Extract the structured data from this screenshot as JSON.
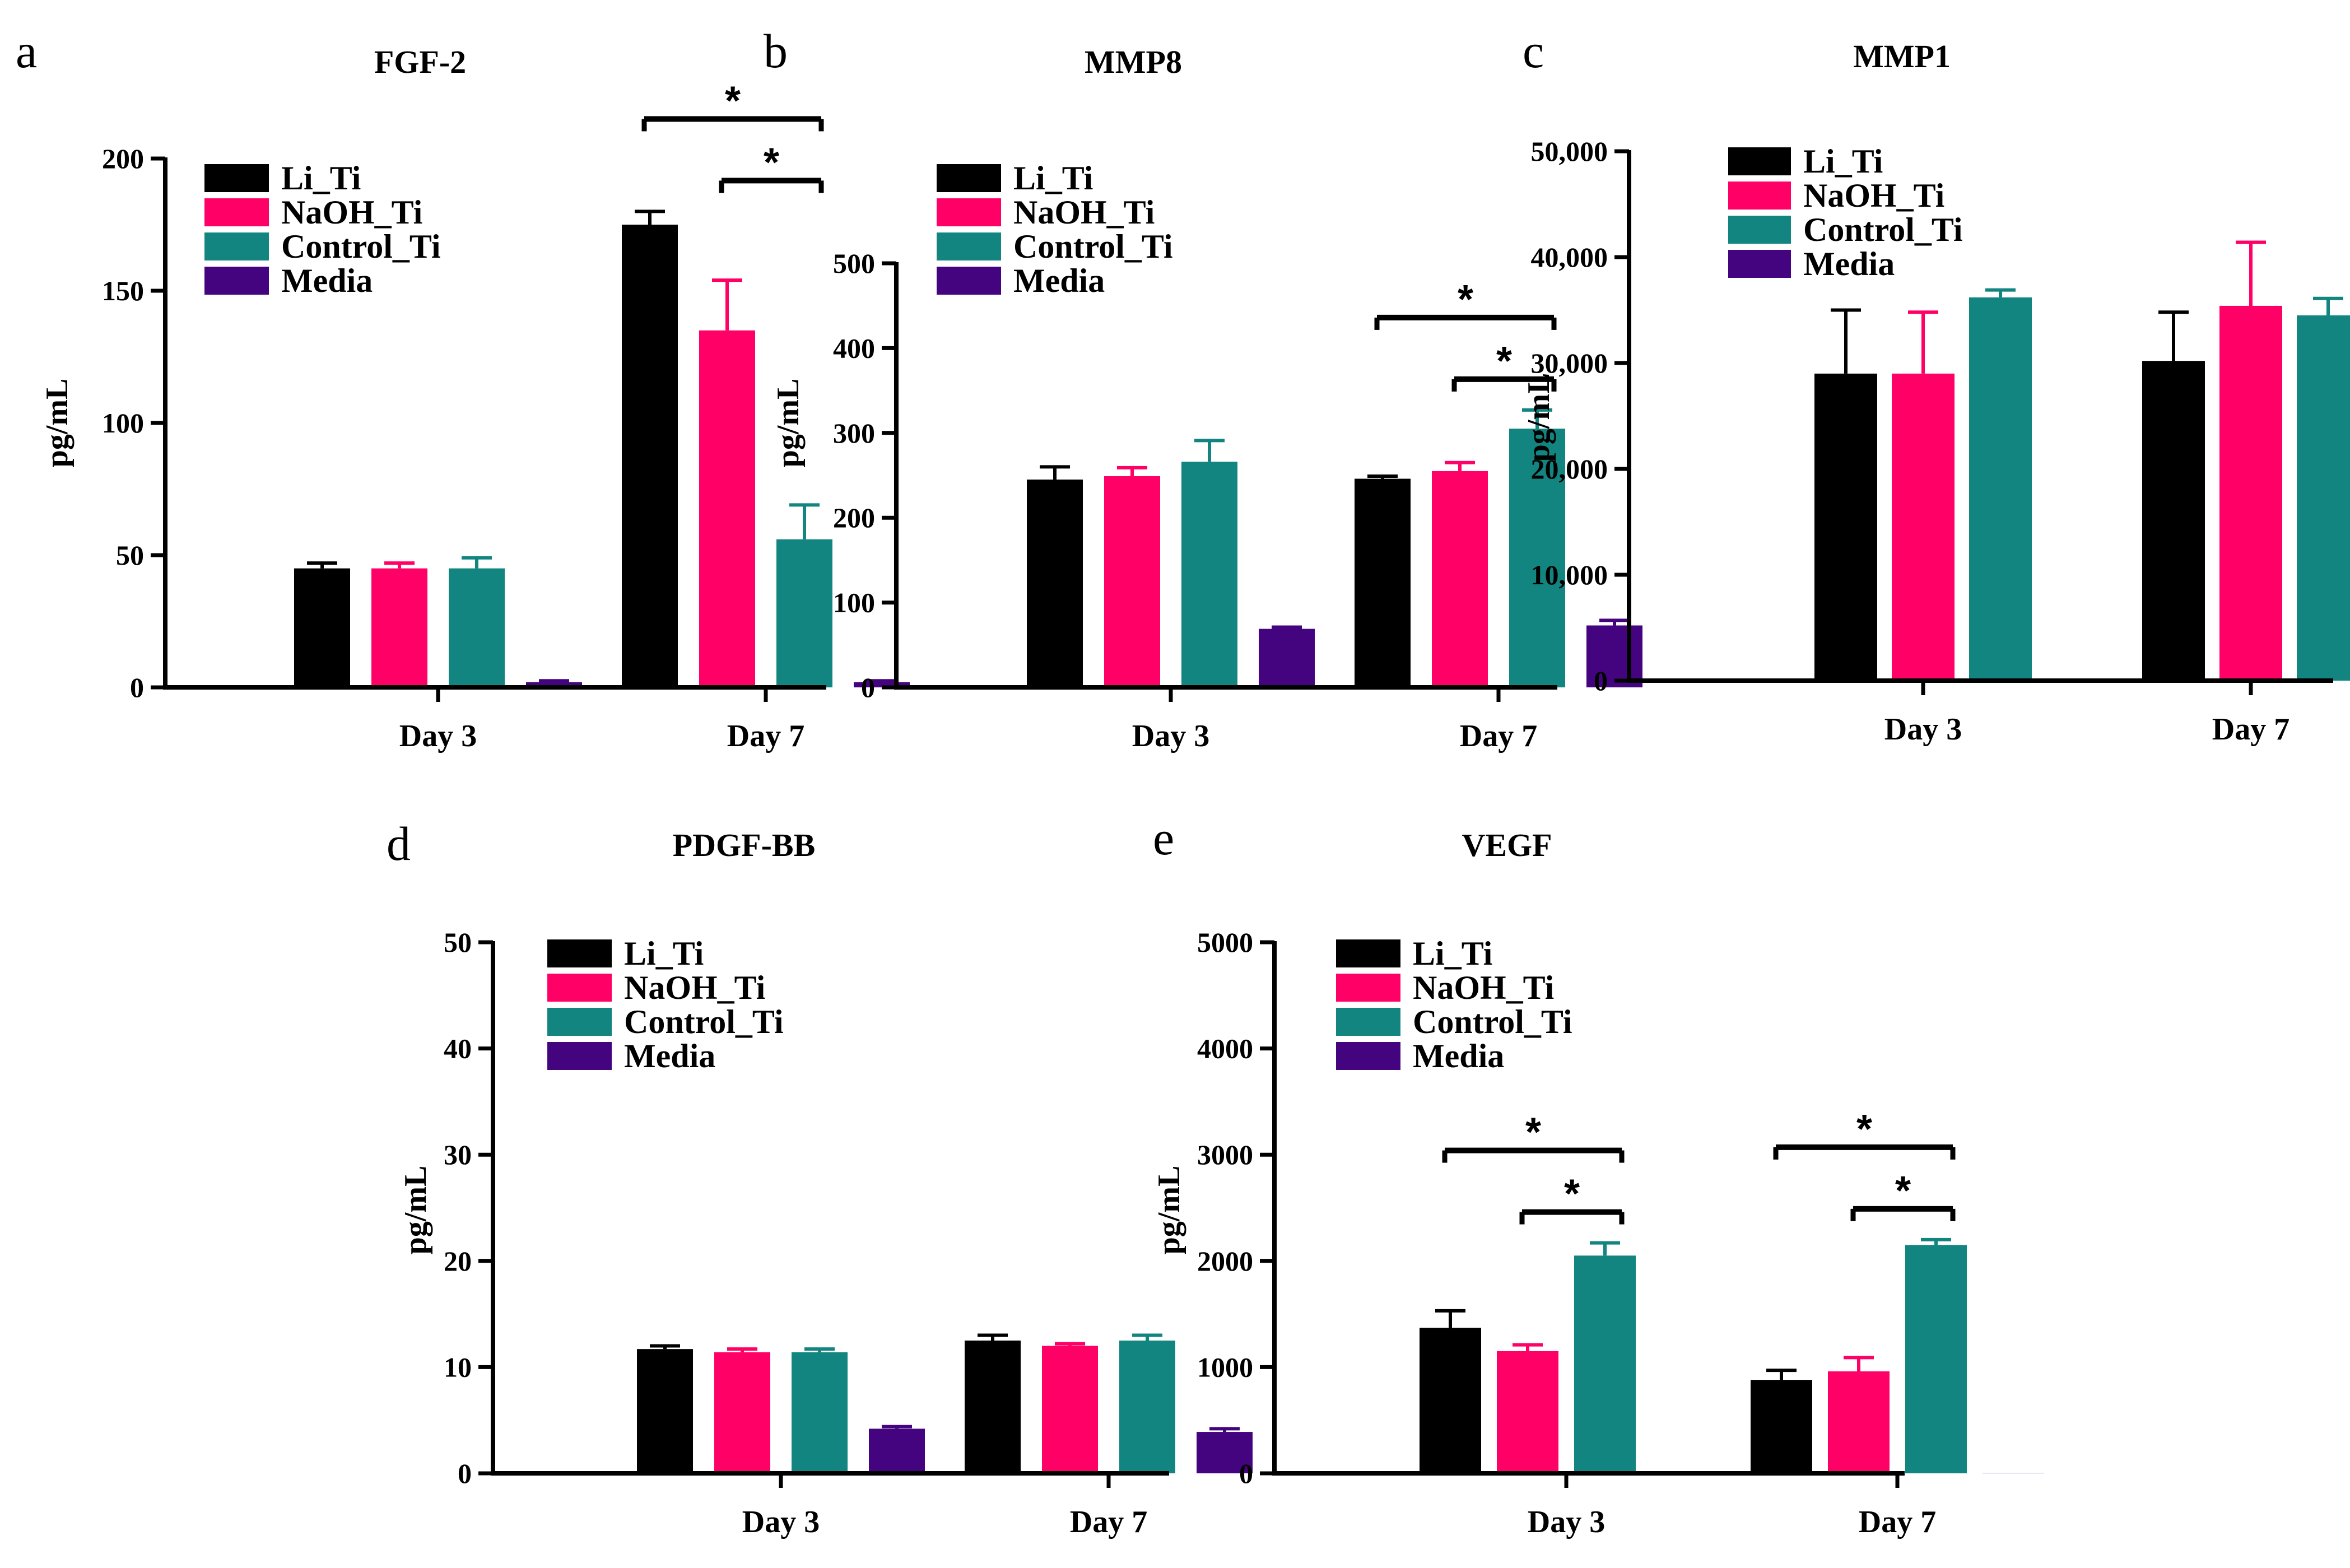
{
  "colors": {
    "Li_Ti": "#000000",
    "NaOH_Ti": "#FF0066",
    "Control_Ti": "#128580",
    "Media": "#45047F"
  },
  "chart_data": [
    {
      "type": "bar",
      "letter": "a",
      "title": "FGF-2",
      "xlabel": "",
      "ylabel": "pg/mL",
      "ylim": [
        0,
        200
      ],
      "yticks": [
        "0",
        "50",
        "100",
        "150",
        "200"
      ],
      "categories": [
        "Day 3",
        "Day 7"
      ],
      "legend": [
        "Li_Ti",
        "NaOH_Ti",
        "Control_Ti",
        "Media"
      ],
      "series": [
        {
          "name": "Li_Ti",
          "values": [
            45,
            175
          ],
          "errors": [
            2,
            5
          ]
        },
        {
          "name": "NaOH_Ti",
          "values": [
            45,
            135
          ],
          "errors": [
            2,
            19
          ]
        },
        {
          "name": "Control_Ti",
          "values": [
            45,
            56
          ],
          "errors": [
            4,
            13
          ]
        },
        {
          "name": "Media",
          "values": [
            2,
            2
          ],
          "errors": [
            0.5,
            0.5
          ]
        }
      ],
      "significance": [
        {
          "category": 1,
          "from": 0,
          "to": 2,
          "label": "*"
        },
        {
          "category": 1,
          "from": 1,
          "to": 2,
          "label": "*"
        }
      ]
    },
    {
      "type": "bar",
      "letter": "b",
      "title": "MMP8",
      "xlabel": "",
      "ylabel": "pg/mL",
      "ylim": [
        0,
        500
      ],
      "yticks": [
        "0",
        "100",
        "200",
        "300",
        "400",
        "500"
      ],
      "categories": [
        "Day 3",
        "Day 7"
      ],
      "legend": [
        "Li_Ti",
        "NaOH_Ti",
        "Control_Ti",
        "Media"
      ],
      "series": [
        {
          "name": "Li_Ti",
          "values": [
            245,
            246
          ],
          "errors": [
            15,
            3
          ]
        },
        {
          "name": "NaOH_Ti",
          "values": [
            249,
            255
          ],
          "errors": [
            10,
            10
          ]
        },
        {
          "name": "Control_Ti",
          "values": [
            266,
            305
          ],
          "errors": [
            25,
            22
          ]
        },
        {
          "name": "Media",
          "values": [
            69,
            73
          ],
          "errors": [
            2,
            6
          ]
        }
      ],
      "significance": [
        {
          "category": 1,
          "from": 0,
          "to": 2,
          "label": "*"
        },
        {
          "category": 1,
          "from": 1,
          "to": 2,
          "label": "*"
        }
      ]
    },
    {
      "type": "bar",
      "letter": "c",
      "title": "MMP1",
      "xlabel": "",
      "ylabel": "pg/mL",
      "ylim": [
        0,
        50000
      ],
      "yticks": [
        "0",
        "10,000",
        "20,000",
        "30,000",
        "40,000",
        "50,000"
      ],
      "categories": [
        "Day 3",
        "Day 7"
      ],
      "legend": [
        "Li_Ti",
        "NaOH_Ti",
        "Control_Ti",
        "Media"
      ],
      "series": [
        {
          "name": "Li_Ti",
          "values": [
            29000,
            30200
          ],
          "errors": [
            6000,
            4600
          ]
        },
        {
          "name": "NaOH_Ti",
          "values": [
            29000,
            35400
          ],
          "errors": [
            5800,
            6000
          ]
        },
        {
          "name": "Control_Ti",
          "values": [
            36200,
            34500
          ],
          "errors": [
            700,
            1600
          ]
        }
      ],
      "significance": []
    },
    {
      "type": "bar",
      "letter": "d",
      "title": "PDGF-BB",
      "xlabel": "",
      "ylabel": "pg/mL",
      "ylim": [
        0,
        50
      ],
      "yticks": [
        "0",
        "10",
        "20",
        "30",
        "40",
        "50"
      ],
      "categories": [
        "Day 3",
        "Day 7"
      ],
      "legend": [
        "Li_Ti",
        "NaOH_Ti",
        "Control_Ti",
        "Media"
      ],
      "series": [
        {
          "name": "Li_Ti",
          "values": [
            11.7,
            12.5
          ],
          "errors": [
            0.3,
            0.5
          ]
        },
        {
          "name": "NaOH_Ti",
          "values": [
            11.4,
            12.0
          ],
          "errors": [
            0.3,
            0.2
          ]
        },
        {
          "name": "Control_Ti",
          "values": [
            11.4,
            12.5
          ],
          "errors": [
            0.3,
            0.5
          ]
        },
        {
          "name": "Media",
          "values": [
            4.2,
            3.9
          ],
          "errors": [
            0.2,
            0.3
          ]
        }
      ],
      "significance": []
    },
    {
      "type": "bar",
      "letter": "e",
      "title": "VEGF",
      "xlabel": "",
      "ylabel": "pg/mL",
      "ylim": [
        0,
        5000
      ],
      "yticks": [
        "0",
        "1000",
        "2000",
        "3000",
        "4000",
        "5000"
      ],
      "categories": [
        "Day 3",
        "Day 7"
      ],
      "legend": [
        "Li_Ti",
        "NaOH_Ti",
        "Control_Ti",
        "Media"
      ],
      "series": [
        {
          "name": "Li_Ti",
          "values": [
            1370,
            880
          ],
          "errors": [
            160,
            90
          ]
        },
        {
          "name": "NaOH_Ti",
          "values": [
            1150,
            960
          ],
          "errors": [
            60,
            130
          ]
        },
        {
          "name": "Control_Ti",
          "values": [
            2050,
            2150
          ],
          "errors": [
            120,
            50
          ]
        },
        {
          "name": "Media",
          "values": [
            0,
            0
          ],
          "errors": [
            0,
            0
          ]
        }
      ],
      "significance": [
        {
          "category": 0,
          "from": 0,
          "to": 2,
          "label": "*"
        },
        {
          "category": 0,
          "from": 1,
          "to": 2,
          "label": "*"
        },
        {
          "category": 1,
          "from": 0,
          "to": 2,
          "label": "*"
        },
        {
          "category": 1,
          "from": 1,
          "to": 2,
          "label": "*"
        }
      ]
    }
  ]
}
